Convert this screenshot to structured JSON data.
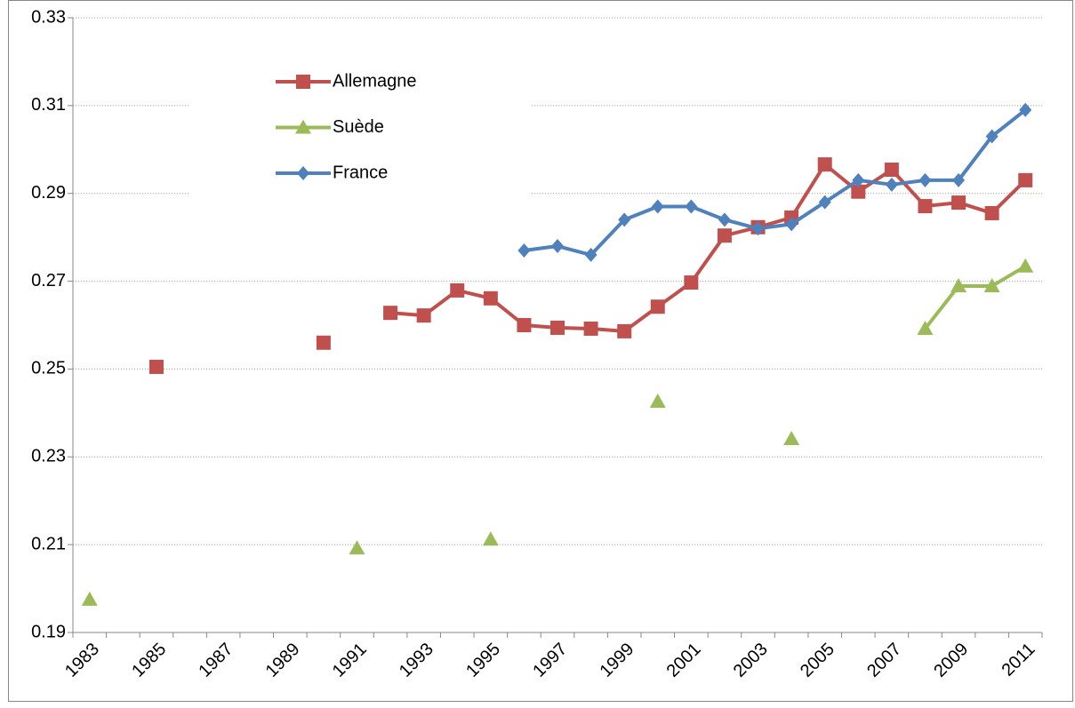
{
  "chart_data": {
    "type": "line",
    "categories": [
      "1983",
      null,
      "1985",
      null,
      "1987",
      null,
      "1989",
      null,
      "1991",
      null,
      "1993",
      null,
      "1995",
      null,
      "1997",
      null,
      "1999",
      null,
      "2001",
      null,
      "2003",
      null,
      "2005",
      null,
      "2007",
      null,
      "2009",
      null,
      "2011"
    ],
    "series": [
      {
        "name": "Allemagne",
        "color": "#c0504d",
        "marker": "square",
        "values": [
          null,
          null,
          0.2505,
          null,
          null,
          null,
          null,
          0.256,
          null,
          0.2628,
          0.2622,
          0.2679,
          0.2661,
          0.26,
          0.2594,
          0.2592,
          0.2586,
          0.2642,
          0.2697,
          0.2804,
          0.2823,
          0.2845,
          0.2966,
          0.2904,
          0.2954,
          0.2871,
          0.2879,
          0.2855,
          0.293
        ]
      },
      {
        "name": "Suède",
        "color": "#9bbb59",
        "marker": "triangle",
        "values": [
          0.1975,
          null,
          null,
          null,
          null,
          null,
          null,
          null,
          0.2092,
          null,
          null,
          null,
          0.2112,
          null,
          null,
          null,
          null,
          0.2426,
          null,
          null,
          null,
          0.2341,
          null,
          null,
          null,
          0.2592,
          0.2689,
          0.2689,
          0.2734
        ]
      },
      {
        "name": "France",
        "color": "#4f81bd",
        "marker": "diamond",
        "values": [
          null,
          null,
          null,
          null,
          null,
          null,
          null,
          null,
          null,
          null,
          null,
          null,
          null,
          0.277,
          0.278,
          0.276,
          0.284,
          0.287,
          0.287,
          0.284,
          0.282,
          0.283,
          0.288,
          0.293,
          0.292,
          0.293,
          0.293,
          0.303,
          0.309
        ]
      }
    ],
    "ylim": [
      0.19,
      0.33
    ],
    "yticks": [
      0.19,
      0.21,
      0.23,
      0.25,
      0.27,
      0.29,
      0.31,
      0.33
    ],
    "grid": true,
    "legend": "upper-left"
  }
}
